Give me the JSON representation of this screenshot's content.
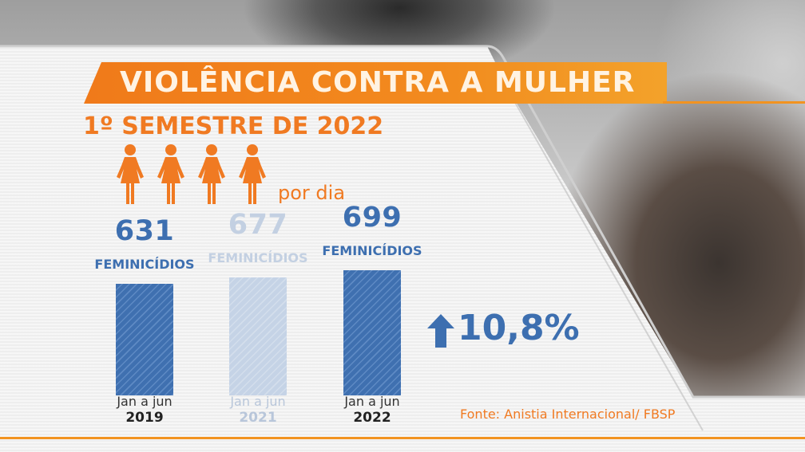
{
  "header": {
    "title": "VIOLÊNCIA CONTRA A MULHER",
    "subtitle": "1º SEMESTRE DE 2022",
    "per_day_count": 4,
    "per_day_label": "por dia"
  },
  "chart_data": {
    "type": "bar",
    "categories": [
      "2019",
      "2021",
      "2022"
    ],
    "period_labels": [
      "Jan a jun",
      "Jan a jun",
      "Jan a jun"
    ],
    "values": [
      631,
      677,
      699
    ],
    "value_unit_label": "FEMINICÍDIOS",
    "highlighted": [
      true,
      false,
      true
    ],
    "change": {
      "direction": "up",
      "value": "10,8%"
    },
    "title": "",
    "xlabel": "",
    "ylabel": ""
  },
  "source": "Fonte: Anistia Internacional/ FBSP",
  "colors": {
    "accent": "#f07a22",
    "bar": "#3f70b0",
    "bar_faded": "#c5d3e6"
  },
  "icons": {
    "person": "woman-icon",
    "arrow": "arrow-up-icon"
  }
}
